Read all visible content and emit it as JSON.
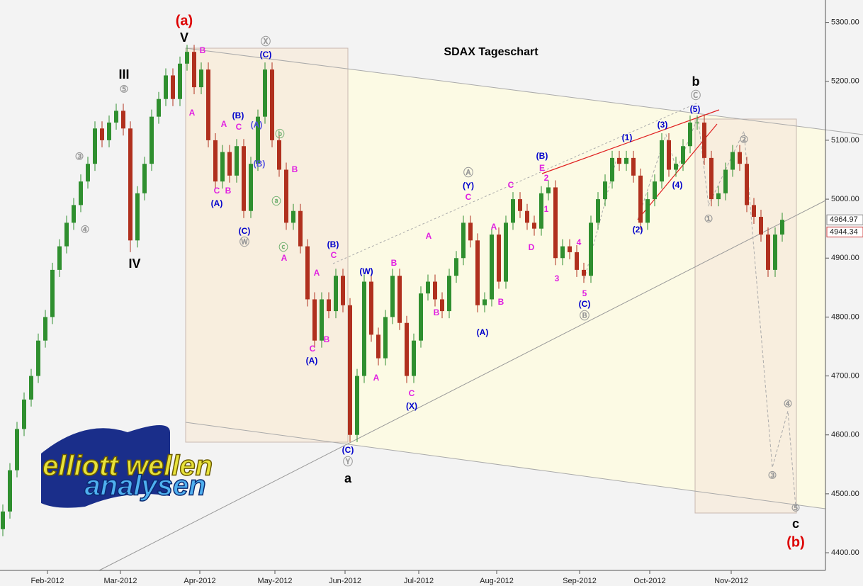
{
  "chart_data": {
    "type": "candlestick",
    "title": "SDAX Tageschart",
    "xlim": [
      -0.4,
      116.1
    ],
    "xticks": [
      {
        "value": 6.3,
        "label": "Feb-2012"
      },
      {
        "value": 16.6,
        "label": "Mar-2012"
      },
      {
        "value": 27.8,
        "label": "Apr-2012"
      },
      {
        "value": 38.4,
        "label": "May-2012"
      },
      {
        "value": 48.3,
        "label": "Jun-2012"
      },
      {
        "value": 58.7,
        "label": "Jul-2012"
      },
      {
        "value": 69.7,
        "label": "Aug-2012"
      },
      {
        "value": 81.4,
        "label": "Sep-2012"
      },
      {
        "value": 91.3,
        "label": "Oct-2012"
      },
      {
        "value": 102.8,
        "label": "Nov-2012"
      }
    ],
    "ylim": [
      4370,
      5338
    ],
    "yticks": [
      {
        "value": 4400,
        "label": "4400.00"
      },
      {
        "value": 4500,
        "label": "4500.00"
      },
      {
        "value": 4600,
        "label": "4600.00"
      },
      {
        "value": 4700,
        "label": "4700.00"
      },
      {
        "value": 4800,
        "label": "4800.00"
      },
      {
        "value": 4900,
        "label": "4900.00"
      },
      {
        "value": 5000,
        "label": "5000.00"
      },
      {
        "value": 5100,
        "label": "5100.00"
      },
      {
        "value": 5200,
        "label": "5200.00"
      },
      {
        "value": 5300,
        "label": "5300.00"
      }
    ],
    "up_color": "#2f8f2f",
    "down_color": "#b0301e",
    "open": [
      4440,
      4470,
      4540,
      4610,
      4660,
      4700,
      4760,
      4800,
      4880,
      4920,
      4960,
      4990,
      5030,
      5060,
      5120,
      5100,
      5130,
      5150,
      5120,
      4930,
      5010,
      5060,
      5140,
      5170,
      5210,
      5170,
      5230,
      5250,
      5190,
      5220,
      5100,
      5030,
      5080,
      5040,
      5090,
      4980,
      5060,
      5140,
      5220,
      5100,
      5050,
      4960,
      4980,
      4920,
      4830,
      4760,
      4830,
      4810,
      4870,
      4820,
      4600,
      4700,
      4860,
      4770,
      4730,
      4800,
      4870,
      4790,
      4700,
      4760,
      4840,
      4860,
      4830,
      4810,
      4870,
      4900,
      4960,
      4930,
      4820,
      4830,
      4940,
      4860,
      4960,
      5000,
      4980,
      4960,
      4950,
      5010,
      5020,
      4900,
      4920,
      4910,
      4880,
      4870,
      4960,
      5000,
      5030,
      5070,
      5060,
      5070,
      5040,
      4960,
      5000,
      5030,
      5100,
      5050,
      5060,
      5090,
      5130,
      5130,
      5070,
      5000,
      5010,
      5050,
      5080,
      5060,
      4990,
      4970,
      4940,
      4880,
      4940
    ],
    "high": [
      4482,
      4552,
      4622,
      4672,
      4712,
      4772,
      4812,
      4892,
      4932,
      4972,
      5002,
      5042,
      5072,
      5132,
      5132,
      5142,
      5162,
      5162,
      5132,
      5022,
      5072,
      5152,
      5182,
      5222,
      5222,
      5242,
      5262,
      5262,
      5232,
      5232,
      5112,
      5092,
      5092,
      5102,
      5102,
      5072,
      5152,
      5232,
      5232,
      5112,
      5062,
      4992,
      4992,
      4932,
      4842,
      4842,
      4842,
      4882,
      4882,
      4832,
      4712,
      4872,
      4872,
      4782,
      4812,
      4882,
      4882,
      4802,
      4772,
      4852,
      4872,
      4872,
      4842,
      4882,
      4912,
      4972,
      4972,
      4942,
      4842,
      4952,
      4952,
      4972,
      5012,
      5012,
      4992,
      4972,
      5022,
      5032,
      5032,
      4932,
      4932,
      4922,
      4892,
      4972,
      5012,
      5042,
      5082,
      5082,
      5082,
      5082,
      5052,
      5012,
      5042,
      5112,
      5112,
      5072,
      5102,
      5142,
      5142,
      5142,
      5082,
      5022,
      5062,
      5092,
      5092,
      5072,
      5002,
      4982,
      4952,
      4952,
      4977
    ],
    "low": [
      4428,
      4458,
      4528,
      4598,
      4648,
      4688,
      4748,
      4788,
      4868,
      4908,
      4948,
      4978,
      5018,
      5048,
      5088,
      5088,
      5118,
      5108,
      4910,
      4918,
      4998,
      5048,
      5128,
      5158,
      5158,
      5158,
      5218,
      5178,
      5178,
      5088,
      5018,
      5018,
      5028,
      5028,
      4968,
      4968,
      5048,
      5128,
      5088,
      5038,
      4948,
      4948,
      4908,
      4818,
      4748,
      4748,
      4798,
      4798,
      4808,
      4588,
      4588,
      4688,
      4758,
      4718,
      4718,
      4788,
      4778,
      4688,
      4688,
      4748,
      4828,
      4818,
      4798,
      4798,
      4858,
      4888,
      4918,
      4808,
      4808,
      4818,
      4848,
      4848,
      4948,
      4968,
      4948,
      4938,
      4938,
      4998,
      4888,
      4888,
      4898,
      4868,
      4858,
      4858,
      4948,
      4988,
      5018,
      5048,
      5048,
      5028,
      4948,
      4948,
      4988,
      5018,
      5038,
      5038,
      5048,
      5078,
      5118,
      5058,
      4988,
      4988,
      4998,
      5038,
      5048,
      4978,
      4958,
      4928,
      4868,
      4868,
      4928
    ],
    "close": [
      4470,
      4540,
      4610,
      4660,
      4700,
      4760,
      4800,
      4880,
      4920,
      4960,
      4990,
      5030,
      5060,
      5120,
      5100,
      5130,
      5150,
      5120,
      4930,
      5010,
      5060,
      5140,
      5170,
      5210,
      5170,
      5230,
      5250,
      5190,
      5220,
      5100,
      5030,
      5080,
      5040,
      5090,
      4980,
      5060,
      5140,
      5220,
      5100,
      5050,
      4960,
      4980,
      4920,
      4830,
      4760,
      4830,
      4810,
      4870,
      4820,
      4600,
      4700,
      4860,
      4770,
      4730,
      4800,
      4870,
      4790,
      4700,
      4760,
      4840,
      4860,
      4830,
      4810,
      4870,
      4900,
      4960,
      4930,
      4820,
      4830,
      4940,
      4860,
      4960,
      5000,
      4980,
      4960,
      4950,
      5010,
      5020,
      4900,
      4920,
      4910,
      4880,
      4870,
      4960,
      5000,
      5030,
      5070,
      5060,
      5070,
      5040,
      4960,
      5000,
      5030,
      5100,
      5050,
      5060,
      5090,
      5130,
      5130,
      5070,
      5000,
      5010,
      5050,
      5080,
      5060,
      4990,
      4970,
      4940,
      4880,
      4940,
      4965
    ],
    "price_tags": [
      4964.97,
      4944.34
    ],
    "annotations": [
      {
        "text": "(a)",
        "color": "#dd0000"
      },
      {
        "text": "V",
        "color": "#000000"
      },
      {
        "text": "III",
        "color": "#000000"
      },
      {
        "text": "⑤",
        "color": "#999999"
      },
      {
        "text": "IV",
        "color": "#000000"
      },
      {
        "text": "③",
        "color": "#999999"
      },
      {
        "text": "④",
        "color": "#999999"
      },
      {
        "text": "B",
        "color": "#e020e0"
      },
      {
        "text": "A",
        "color": "#e020e0"
      },
      {
        "text": "Ⓧ",
        "color": "#999999"
      },
      {
        "text": "(C)",
        "color": "#0000cc"
      },
      {
        "text": "(B)",
        "color": "#0000cc"
      },
      {
        "text": "C",
        "color": "#e020e0"
      },
      {
        "text": "A",
        "color": "#e020e0"
      },
      {
        "text": "(A)",
        "color": "#5050e0"
      },
      {
        "text": "ⓑ",
        "color": "#70b070"
      },
      {
        "text": "(B)",
        "color": "#5050e0"
      },
      {
        "text": "B",
        "color": "#e020e0"
      },
      {
        "text": "C",
        "color": "#e020e0"
      },
      {
        "text": "B",
        "color": "#e020e0"
      },
      {
        "text": "(A)",
        "color": "#0000cc"
      },
      {
        "text": "ⓐ",
        "color": "#70b070"
      },
      {
        "text": "(C)",
        "color": "#0000cc"
      },
      {
        "text": "Ⓦ",
        "color": "#999999"
      },
      {
        "text": "ⓒ",
        "color": "#70b070"
      },
      {
        "text": "A",
        "color": "#e020e0"
      },
      {
        "text": "A",
        "color": "#e020e0"
      },
      {
        "text": "(B)",
        "color": "#0000cc"
      },
      {
        "text": "C",
        "color": "#e020e0"
      },
      {
        "text": "B",
        "color": "#e020e0"
      },
      {
        "text": "C",
        "color": "#e020e0"
      },
      {
        "text": "(A)",
        "color": "#0000cc"
      },
      {
        "text": "(C)",
        "color": "#0000cc"
      },
      {
        "text": "Ⓨ",
        "color": "#999999"
      },
      {
        "text": "a",
        "color": "#000000"
      },
      {
        "text": "(W)",
        "color": "#0000cc"
      },
      {
        "text": "B",
        "color": "#e020e0"
      },
      {
        "text": "A",
        "color": "#e020e0"
      },
      {
        "text": "C",
        "color": "#e020e0"
      },
      {
        "text": "(X)",
        "color": "#0000cc"
      },
      {
        "text": "A",
        "color": "#e020e0"
      },
      {
        "text": "C",
        "color": "#e020e0"
      },
      {
        "text": "Ⓐ",
        "color": "#999999"
      },
      {
        "text": "(Y)",
        "color": "#0000cc"
      },
      {
        "text": "B",
        "color": "#e020e0"
      },
      {
        "text": "A",
        "color": "#e020e0"
      },
      {
        "text": "D",
        "color": "#e020e0"
      },
      {
        "text": "C",
        "color": "#e020e0"
      },
      {
        "text": "B",
        "color": "#e020e0"
      },
      {
        "text": "(A)",
        "color": "#0000cc"
      },
      {
        "text": "(B)",
        "color": "#0000cc"
      },
      {
        "text": "E",
        "color": "#e020e0"
      },
      {
        "text": "2",
        "color": "#e020e0"
      },
      {
        "text": "1",
        "color": "#e020e0"
      },
      {
        "text": "3",
        "color": "#e020e0"
      },
      {
        "text": "4",
        "color": "#e020e0"
      },
      {
        "text": "5",
        "color": "#e020e0"
      },
      {
        "text": "(C)",
        "color": "#0000cc"
      },
      {
        "text": "Ⓑ",
        "color": "#999999"
      },
      {
        "text": "(1)",
        "color": "#0000cc"
      },
      {
        "text": "(3)",
        "color": "#0000cc"
      },
      {
        "text": "(5)",
        "color": "#0000cc"
      },
      {
        "text": "Ⓒ",
        "color": "#999999"
      },
      {
        "text": "b",
        "color": "#000000"
      },
      {
        "text": "(4)",
        "color": "#0000cc"
      },
      {
        "text": "(2)",
        "color": "#0000cc"
      },
      {
        "text": "②",
        "color": "#999999"
      },
      {
        "text": "①",
        "color": "#999999"
      },
      {
        "text": "④",
        "color": "#999999"
      },
      {
        "text": "③",
        "color": "#999999"
      },
      {
        "text": "⑤",
        "color": "#999999"
      },
      {
        "text": "c",
        "color": "#000000"
      },
      {
        "text": "(b)",
        "color": "#dd0000"
      }
    ]
  },
  "logo": {
    "line1": "elliott wellen",
    "line2": "analysen"
  }
}
